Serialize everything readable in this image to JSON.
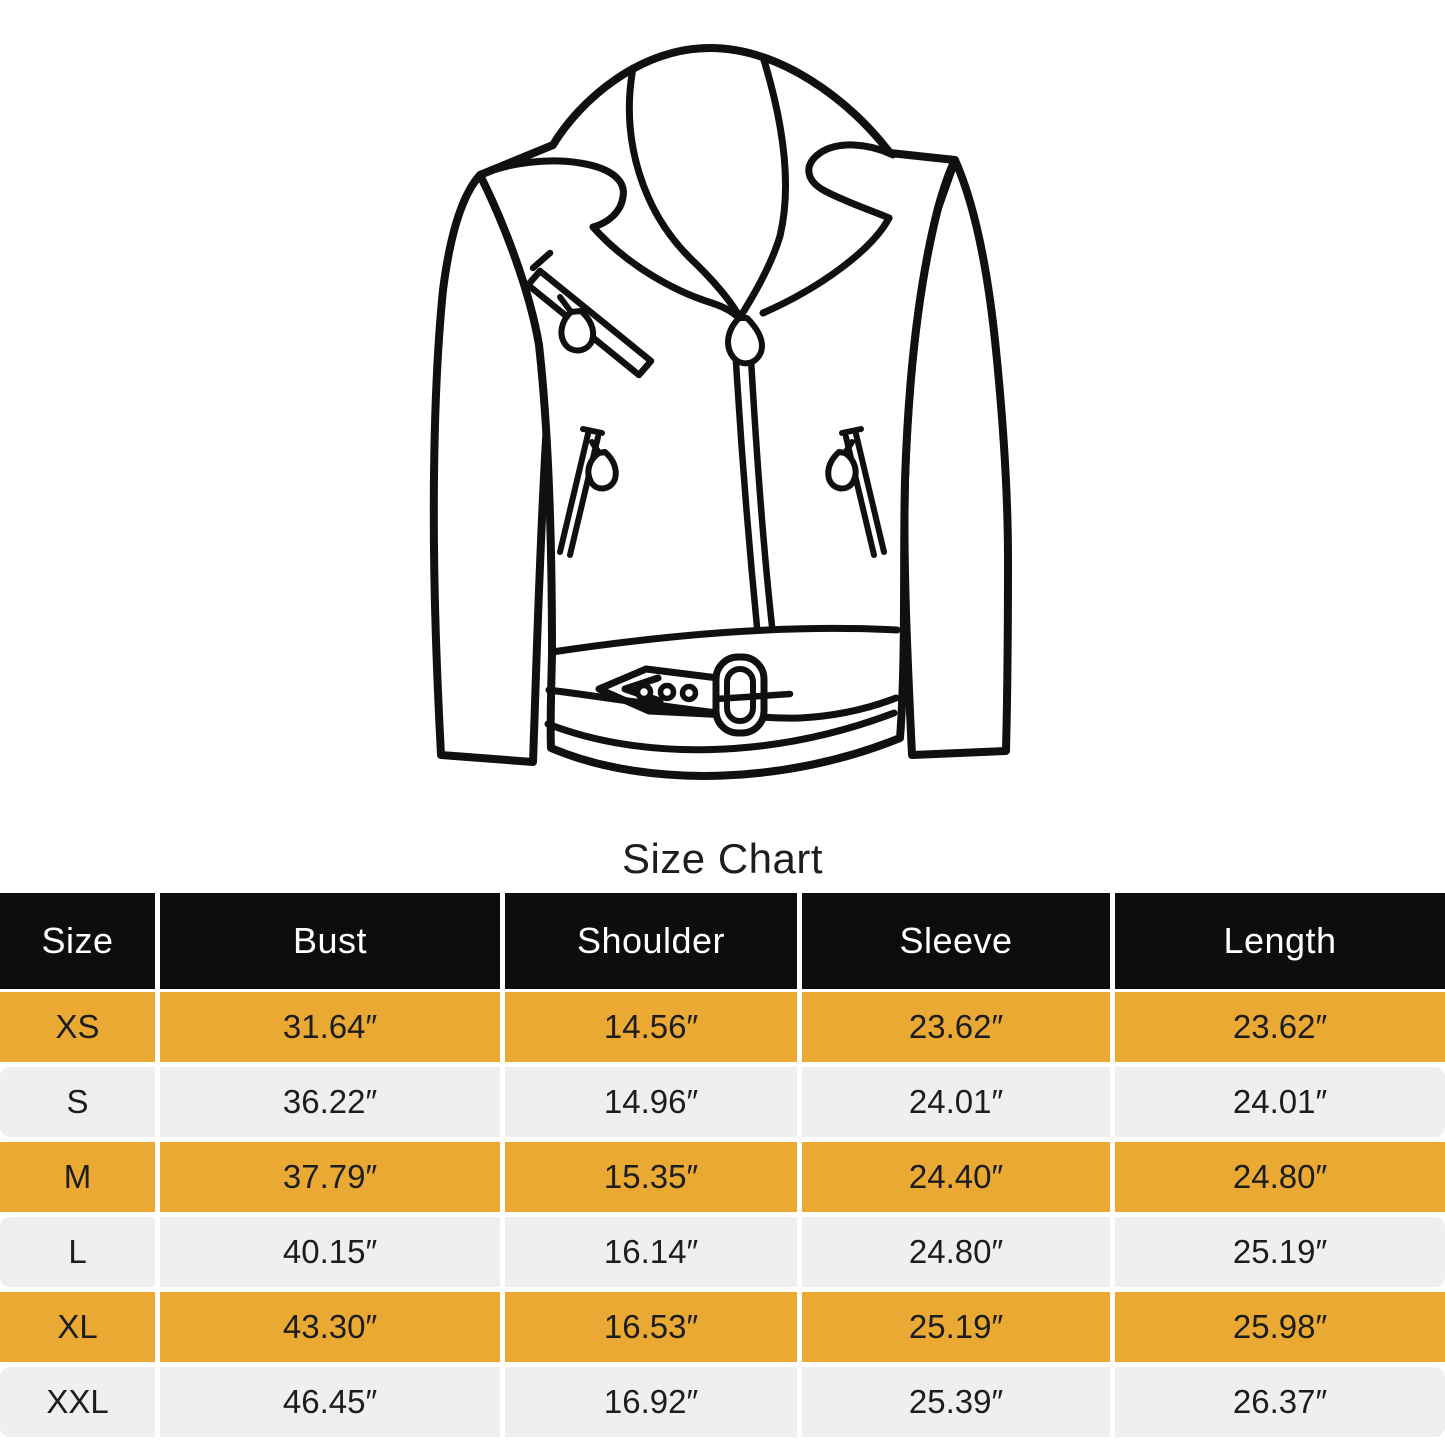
{
  "title": "Size Chart",
  "illustration": {
    "name": "biker-leather-jacket-line-drawing",
    "line_color": "#101010",
    "background": "#ffffff"
  },
  "colors": {
    "header_bg": "#0d0d0d",
    "header_text": "#ffffff",
    "accent_row_bg": "#E9A932",
    "light_row_bg": "#F0EFED",
    "body_text": "#1d1d1d"
  },
  "table": {
    "columns": [
      "Size",
      "Bust",
      "Shoulder",
      "Sleeve",
      "Length"
    ],
    "rows": [
      {
        "size": "XS",
        "bust": "31.64″",
        "shoulder": "14.56″",
        "sleeve": "23.62″",
        "length": "23.62″"
      },
      {
        "size": "S",
        "bust": "36.22″",
        "shoulder": "14.96″",
        "sleeve": "24.01″",
        "length": "24.01″"
      },
      {
        "size": "M",
        "bust": "37.79″",
        "shoulder": "15.35″",
        "sleeve": "24.40″",
        "length": "24.80″"
      },
      {
        "size": "L",
        "bust": "40.15″",
        "shoulder": "16.14″",
        "sleeve": "24.80″",
        "length": "25.19″"
      },
      {
        "size": "XL",
        "bust": "43.30″",
        "shoulder": "16.53″",
        "sleeve": "25.19″",
        "length": "25.98″"
      },
      {
        "size": "XXL",
        "bust": "46.45″",
        "shoulder": "16.92″",
        "sleeve": "25.39″",
        "length": "26.37″"
      }
    ]
  },
  "chart_data": {
    "type": "table",
    "title": "Size Chart",
    "categories": [
      "XS",
      "S",
      "M",
      "L",
      "XL",
      "XXL"
    ],
    "series": [
      {
        "name": "Bust (in)",
        "values": [
          31.64,
          36.22,
          37.79,
          40.15,
          43.3,
          46.45
        ]
      },
      {
        "name": "Shoulder (in)",
        "values": [
          14.56,
          14.96,
          15.35,
          16.14,
          16.53,
          16.92
        ]
      },
      {
        "name": "Sleeve (in)",
        "values": [
          23.62,
          24.01,
          24.4,
          24.8,
          25.19,
          25.39
        ]
      },
      {
        "name": "Length (in)",
        "values": [
          23.62,
          24.01,
          24.8,
          25.19,
          25.98,
          26.37
        ]
      }
    ]
  }
}
